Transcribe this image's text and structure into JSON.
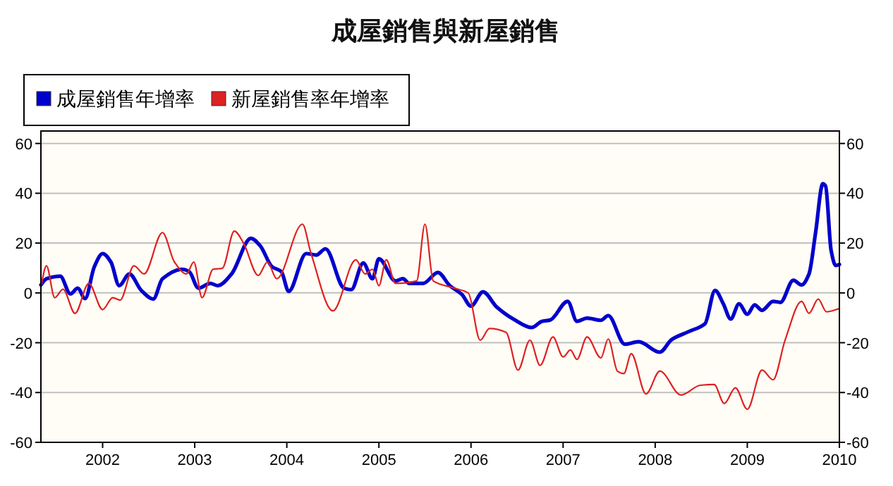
{
  "chart_data": {
    "type": "line",
    "title": "成屋銷售與新屋銷售",
    "xlim": [
      2001.33,
      2010
    ],
    "xticks": [
      {
        "value": 2002,
        "label": "2002"
      },
      {
        "value": 2003,
        "label": "2003"
      },
      {
        "value": 2004,
        "label": "2004"
      },
      {
        "value": 2005,
        "label": "2005"
      },
      {
        "value": 2006,
        "label": "2006"
      },
      {
        "value": 2007,
        "label": "2007"
      },
      {
        "value": 2008,
        "label": "2008"
      },
      {
        "value": 2009,
        "label": "2009"
      },
      {
        "value": 2010,
        "label": "2010"
      }
    ],
    "ylim": [
      -60,
      65
    ],
    "yticks": [
      -60,
      -40,
      -20,
      0,
      20,
      40,
      60
    ],
    "y2lim": [
      -60,
      65
    ],
    "y2ticks": [
      -60,
      -40,
      -20,
      0,
      20,
      40,
      60
    ],
    "grid": "y",
    "legend": "top left",
    "line_style": "solid",
    "series": [
      {
        "name": "成屋銷售年增率",
        "color": "#0000cc",
        "x": [
          2001.33,
          2001.39,
          2001.54,
          2001.65,
          2001.73,
          2001.81,
          2001.91,
          2002.0,
          2002.09,
          2002.18,
          2002.29,
          2002.42,
          2002.55,
          2002.65,
          2002.86,
          2002.94,
          2003.04,
          2003.17,
          2003.25,
          2003.4,
          2003.61,
          2003.71,
          2003.84,
          2003.94,
          2004.02,
          2004.21,
          2004.32,
          2004.42,
          2004.62,
          2004.7,
          2004.83,
          2004.93,
          2005.0,
          2005.18,
          2005.26,
          2005.33,
          2005.48,
          2005.64,
          2005.77,
          2005.9,
          2006.0,
          2006.13,
          2006.28,
          2006.46,
          2006.66,
          2006.77,
          2006.86,
          2007.05,
          2007.15,
          2007.26,
          2007.41,
          2007.49,
          2007.67,
          2007.82,
          2008.05,
          2008.18,
          2008.36,
          2008.54,
          2008.65,
          2008.74,
          2008.82,
          2008.91,
          2009.0,
          2009.08,
          2009.16,
          2009.28,
          2009.36,
          2009.5,
          2009.59,
          2009.67,
          2009.74,
          2009.82,
          2009.85,
          2009.91,
          2009.96,
          2010.0
        ],
        "values": [
          3.2,
          5.7,
          6.7,
          -0.4,
          1.9,
          -2.3,
          10.5,
          15.8,
          12.4,
          2.9,
          7.6,
          1,
          -2.5,
          5.7,
          9.5,
          8.6,
          1.9,
          3.8,
          2.9,
          7.6,
          21.9,
          19,
          10.5,
          8.6,
          0.6,
          15.8,
          15.2,
          17.7,
          1.9,
          1.3,
          12,
          5.7,
          13.7,
          4.8,
          5.7,
          3.8,
          3.8,
          8.2,
          2.9,
          -0.6,
          -5.3,
          0.4,
          -5.7,
          -10.5,
          -13.9,
          -11.4,
          -10.9,
          -3.4,
          -11.4,
          -10.1,
          -11,
          -9.1,
          -20.6,
          -19.6,
          -23.8,
          -18.7,
          -15.6,
          -12.4,
          1,
          -4.4,
          -10.5,
          -4.4,
          -8.6,
          -4.8,
          -7,
          -3.4,
          -3.8,
          5.1,
          3.2,
          7.6,
          23.8,
          43.8,
          42.9,
          17.1,
          11,
          11.4
        ]
      },
      {
        "name": "新屋銷售率年增率",
        "color": "#dd2222",
        "x": [
          2001.33,
          2001.39,
          2001.48,
          2001.57,
          2001.7,
          2001.85,
          2002.0,
          2002.11,
          2002.19,
          2002.34,
          2002.45,
          2002.65,
          2002.78,
          2002.91,
          2002.99,
          2003.08,
          2003.2,
          2003.3,
          2003.43,
          2003.53,
          2003.69,
          2003.79,
          2003.89,
          2004.17,
          2004.26,
          2004.5,
          2004.75,
          2004.85,
          2004.93,
          2005.0,
          2005.08,
          2005.18,
          2005.41,
          2005.5,
          2005.59,
          2005.82,
          2005.97,
          2006.1,
          2006.2,
          2006.38,
          2006.51,
          2006.64,
          2006.75,
          2006.89,
          2007.0,
          2007.08,
          2007.15,
          2007.26,
          2007.41,
          2007.49,
          2007.59,
          2007.66,
          2007.74,
          2007.9,
          2008.05,
          2008.28,
          2008.49,
          2008.64,
          2008.75,
          2008.87,
          2009.0,
          2009.16,
          2009.28,
          2009.41,
          2009.59,
          2009.67,
          2009.77,
          2009.86,
          2010.0
        ],
        "values": [
          2.9,
          10.9,
          -1.9,
          1.5,
          -8.2,
          3.8,
          -6.7,
          -1.9,
          -2.9,
          10.9,
          7.6,
          24.2,
          12.4,
          7.6,
          12.4,
          -1.9,
          9.5,
          9.9,
          24.8,
          20,
          7,
          12.4,
          5.7,
          27.6,
          16.2,
          -7.2,
          13.3,
          7.6,
          9.5,
          2.9,
          13.3,
          3.8,
          4.8,
          27.6,
          4.8,
          1.9,
          0,
          -19,
          -14.3,
          -15.8,
          -31,
          -19,
          -29.1,
          -17.7,
          -25.7,
          -22.9,
          -26.7,
          -17.7,
          -26.1,
          -18.5,
          -31.4,
          -32.4,
          -24.4,
          -40.6,
          -31.4,
          -41,
          -37.1,
          -36.8,
          -44.4,
          -38.1,
          -46.7,
          -31,
          -34.9,
          -19,
          -3.4,
          -8.2,
          -2.5,
          -7.6,
          -6.3
        ]
      }
    ]
  }
}
